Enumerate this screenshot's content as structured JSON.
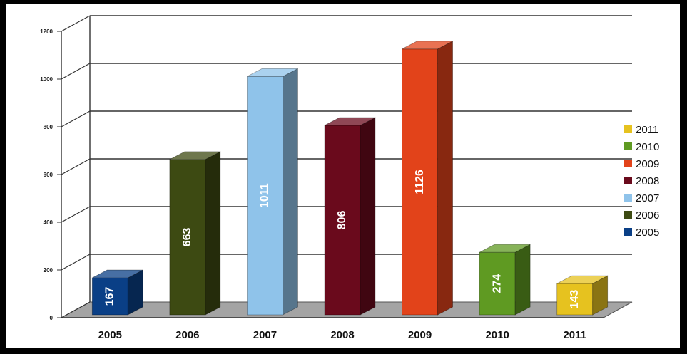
{
  "chart_data": {
    "type": "bar",
    "categories": [
      "2005",
      "2006",
      "2007",
      "2008",
      "2009",
      "2010",
      "2011"
    ],
    "values": [
      167,
      663,
      1011,
      806,
      1126,
      274,
      143
    ],
    "colors": [
      "#0a3f86",
      "#3d4a12",
      "#8fc3ea",
      "#6a0a1c",
      "#e2431a",
      "#5f9a22",
      "#e6c21f"
    ],
    "y_ticks": [
      0,
      200,
      400,
      600,
      800,
      1000,
      1200
    ],
    "y_tick_labels": [
      "0",
      "200",
      "400",
      "600",
      "800",
      "1000",
      "1200"
    ],
    "ylim": [
      0,
      1200
    ],
    "title": "",
    "xlabel": "",
    "ylabel": "",
    "grid": true,
    "legend_position": "right",
    "legend": [
      "2011",
      "2010",
      "2009",
      "2008",
      "2007",
      "2006",
      "2005"
    ]
  }
}
